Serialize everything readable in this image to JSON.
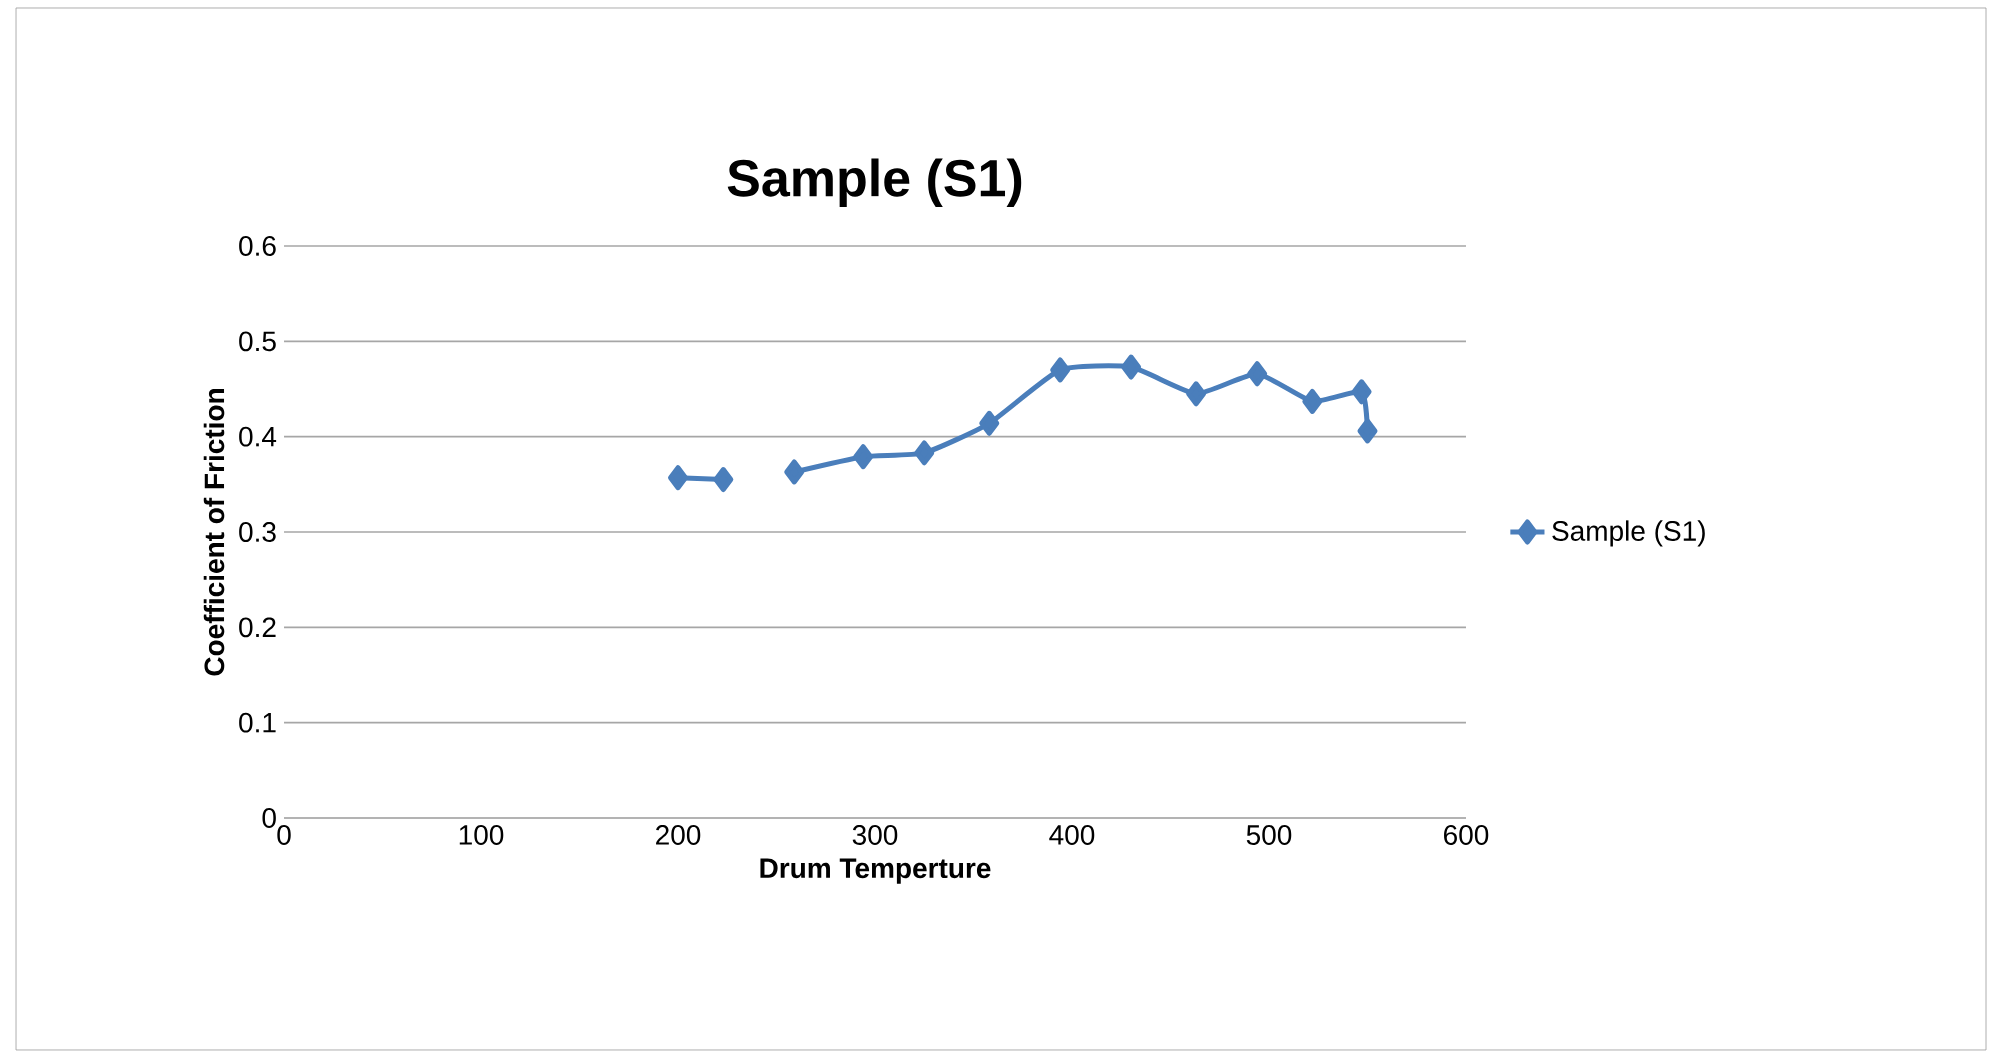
{
  "chart_data": {
    "type": "line",
    "title": "Sample (S1)",
    "xlabel": "Drum Temperture",
    "ylabel": "Coefficient of Friction",
    "x": [
      200,
      223,
      241,
      259,
      294,
      325,
      358,
      394,
      430,
      463,
      494,
      522,
      547,
      550
    ],
    "series": [
      {
        "name": "Sample (S1)",
        "color": "#4a7ebb",
        "values": [
          0.357,
          0.355,
          null,
          0.363,
          0.379,
          0.383,
          0.414,
          0.47,
          0.473,
          0.445,
          0.466,
          0.437,
          0.447,
          0.406
        ]
      }
    ],
    "xlim": [
      0,
      600
    ],
    "xticks": [
      0,
      100,
      200,
      300,
      400,
      500,
      600
    ],
    "ylim": [
      0,
      0.6
    ],
    "yticks": [
      0,
      0.1,
      0.2,
      0.3,
      0.4,
      0.5,
      0.6
    ],
    "grid": "y",
    "legend": "right",
    "marker": "diamond",
    "line_style": "solid"
  }
}
